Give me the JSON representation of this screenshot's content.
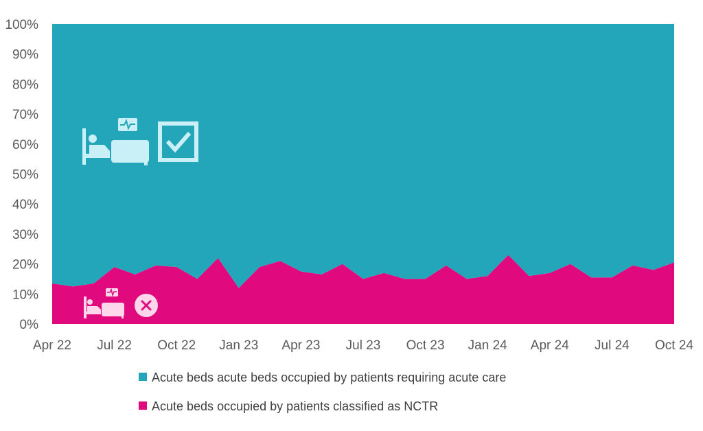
{
  "chart_data": {
    "type": "area",
    "stacked": true,
    "percent": true,
    "title": "",
    "xlabel": "",
    "ylabel": "",
    "ylim": [
      0,
      100
    ],
    "yticks": [
      "0%",
      "10%",
      "20%",
      "30%",
      "40%",
      "50%",
      "60%",
      "70%",
      "80%",
      "90%",
      "100%"
    ],
    "x": [
      "Apr 22",
      "May 22",
      "Jun 22",
      "Jul 22",
      "Aug 22",
      "Sep 22",
      "Oct 22",
      "Nov 22",
      "Dec 22",
      "Jan 23",
      "Feb 23",
      "Mar 23",
      "Apr 23",
      "May 23",
      "Jun 23",
      "Jul 23",
      "Aug 23",
      "Sep 23",
      "Oct 23",
      "Nov 23",
      "Dec 23",
      "Jan 24",
      "Feb 24",
      "Mar 24",
      "Apr 24",
      "May 24",
      "Jun 24",
      "Jul 24",
      "Aug 24",
      "Sep 24",
      "Oct 24"
    ],
    "xtick_labels": [
      "Apr 22",
      "Jul 22",
      "Oct 22",
      "Jan 23",
      "Apr 23",
      "Jul 23",
      "Oct 23",
      "Jan 24",
      "Apr 24",
      "Jul 24",
      "Oct 24"
    ],
    "series": [
      {
        "name": "Acute beds occupied by patients classified as NCTR",
        "color": "#e0097e",
        "values": [
          13.5,
          12.5,
          13.5,
          19,
          16.5,
          19.5,
          19,
          15,
          22,
          12,
          19,
          21,
          17.5,
          16.5,
          20,
          15,
          17,
          15,
          15,
          19.5,
          15,
          16,
          23,
          16,
          17,
          20,
          15.5,
          15.5,
          19.5,
          18,
          20.5
        ]
      },
      {
        "name": "Acute beds acute beds occupied by patients requiring acute care",
        "color": "#23a6b9",
        "values": [
          86.5,
          87.5,
          86.5,
          81,
          83.5,
          80.5,
          81,
          85,
          78,
          88,
          81,
          79,
          82.5,
          83.5,
          80,
          85,
          83,
          85,
          85,
          80.5,
          85,
          84,
          77,
          84,
          83,
          80,
          84.5,
          84.5,
          80.5,
          82,
          79.5
        ]
      }
    ],
    "legend_position": "bottom",
    "grid": false,
    "icons": [
      "bed-monitor-check-icon",
      "bed-monitor-cross-icon"
    ],
    "icon_color_light": "#c9f0f6",
    "icon_color_pink": "#ffd6ea"
  }
}
